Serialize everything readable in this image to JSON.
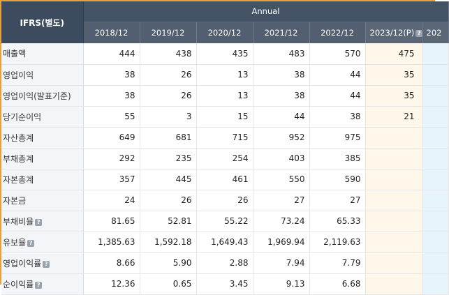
{
  "header": {
    "corner_label": "IFRS(별도)",
    "group_label": "Annual",
    "years": [
      "2018/12",
      "2019/12",
      "2020/12",
      "2021/12",
      "2022/12"
    ],
    "estimate_year": "2023/12(P)",
    "next_year_partial": "202"
  },
  "rows": [
    {
      "label": "매출액",
      "help": false,
      "values": [
        "444",
        "438",
        "435",
        "483",
        "570"
      ],
      "estimate": "475"
    },
    {
      "label": "영업이익",
      "help": false,
      "values": [
        "38",
        "26",
        "13",
        "38",
        "44"
      ],
      "estimate": "35"
    },
    {
      "label": "영업이익(발표기준)",
      "help": false,
      "values": [
        "38",
        "26",
        "13",
        "38",
        "44"
      ],
      "estimate": "35"
    },
    {
      "label": "당기순이익",
      "help": false,
      "values": [
        "55",
        "3",
        "15",
        "44",
        "38"
      ],
      "estimate": "21"
    },
    {
      "label": "자산총계",
      "help": false,
      "values": [
        "649",
        "681",
        "715",
        "952",
        "975"
      ],
      "estimate": ""
    },
    {
      "label": "부채총계",
      "help": false,
      "values": [
        "292",
        "235",
        "254",
        "403",
        "385"
      ],
      "estimate": ""
    },
    {
      "label": "자본총계",
      "help": false,
      "values": [
        "357",
        "445",
        "461",
        "550",
        "590"
      ],
      "estimate": ""
    },
    {
      "label": "자본금",
      "help": false,
      "values": [
        "24",
        "26",
        "26",
        "27",
        "27"
      ],
      "estimate": ""
    },
    {
      "label": "부채비율",
      "help": true,
      "values": [
        "81.65",
        "52.81",
        "55.22",
        "73.24",
        "65.33"
      ],
      "estimate": ""
    },
    {
      "label": "유보율",
      "help": true,
      "values": [
        "1,385.63",
        "1,592.18",
        "1,649.43",
        "1,969.94",
        "2,119.63"
      ],
      "estimate": ""
    },
    {
      "label": "영업이익률",
      "help": true,
      "values": [
        "8.66",
        "5.90",
        "2.88",
        "7.94",
        "7.79"
      ],
      "estimate": ""
    },
    {
      "label": "순이익률",
      "help": true,
      "values": [
        "12.36",
        "0.65",
        "3.45",
        "9.13",
        "6.68"
      ],
      "estimate": ""
    }
  ],
  "colors": {
    "header_dark": "#3d4b5e",
    "header": "#525f71",
    "frame_accent": "#e8a13a",
    "estimate_bg": "#fff7e9",
    "next_bg": "#e8f4fb",
    "label_bg": "#f3f5f9"
  },
  "icons": {
    "help": "question-icon"
  }
}
